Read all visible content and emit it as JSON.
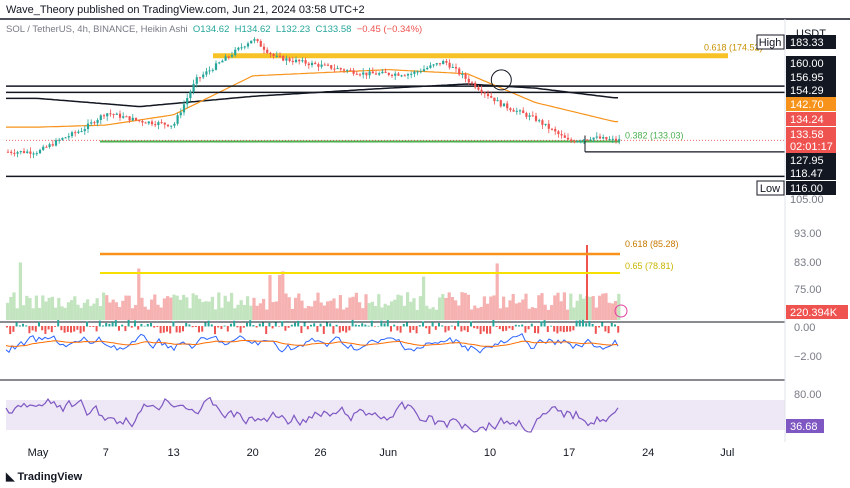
{
  "header": {
    "publisher": "Wave_Theory published on TradingView.com, Jun 21, 2024 03:58 UTC+2",
    "symbol": "SOL / TetherUS, 4h, BINANCE, Heikin Ashi",
    "o": "O134.62",
    "h": "H134.62",
    "l": "L132.23",
    "c": "C133.58",
    "chg": "−0.45 (−0.34%)",
    "currency": "USDT"
  },
  "logo_text": "TradingView",
  "colors": {
    "up": "#26a69a",
    "down": "#ef5350",
    "ema_orange": "#f7931a",
    "ema_black": "#131722",
    "fib_gold": "#f5b700",
    "fib_yellow": "#f5e000",
    "fib_green": "#4caf50",
    "macd": "#2962ff",
    "signal": "#ff6d00",
    "rsi": "#7e57c2",
    "rsi_band": "#ede7f6"
  },
  "chart_data": {
    "type": "candlestick",
    "title": "SOL / TetherUS, 4h, BINANCE, Heikin Ashi",
    "price_axis": {
      "range": [
        104,
        185
      ],
      "ticks": [
        "105.00"
      ]
    },
    "x_ticks": [
      "May",
      "7",
      "13",
      "20",
      "26",
      "Jun",
      "10",
      "17",
      "24",
      "Jul"
    ],
    "price_path_approx": [
      {
        "date": "May 1",
        "price": 128
      },
      {
        "date": "May 3",
        "price": 134
      },
      {
        "date": "May 5",
        "price": 139
      },
      {
        "date": "May 7",
        "price": 147
      },
      {
        "date": "May 10",
        "price": 143
      },
      {
        "date": "May 13",
        "price": 141
      },
      {
        "date": "May 15",
        "price": 163
      },
      {
        "date": "May 20",
        "price": 183
      },
      {
        "date": "May 22",
        "price": 174
      },
      {
        "date": "May 26",
        "price": 170
      },
      {
        "date": "May 30",
        "price": 166
      },
      {
        "date": "Jun 3",
        "price": 166
      },
      {
        "date": "Jun 6",
        "price": 172
      },
      {
        "date": "Jun 8",
        "price": 163
      },
      {
        "date": "Jun 11",
        "price": 151
      },
      {
        "date": "Jun 14",
        "price": 144
      },
      {
        "date": "Jun 17",
        "price": 133
      },
      {
        "date": "Jun 19",
        "price": 135
      },
      {
        "date": "Jun 21",
        "price": 133.58
      }
    ],
    "ema_orange_approx": [
      {
        "date": "May 1",
        "price": 140
      },
      {
        "date": "May 7",
        "price": 141
      },
      {
        "date": "May 13",
        "price": 146
      },
      {
        "date": "May 20",
        "price": 165
      },
      {
        "date": "Jun 1",
        "price": 168
      },
      {
        "date": "Jun 8",
        "price": 166
      },
      {
        "date": "Jun 14",
        "price": 152
      },
      {
        "date": "Jun 21",
        "price": 142.7
      }
    ],
    "ema_black_approx": [
      {
        "date": "May 1",
        "price": 154
      },
      {
        "date": "May 10",
        "price": 150
      },
      {
        "date": "May 20",
        "price": 155
      },
      {
        "date": "Jun 1",
        "price": 159
      },
      {
        "date": "Jun 8",
        "price": 161
      },
      {
        "date": "Jun 14",
        "price": 159
      },
      {
        "date": "Jun 21",
        "price": 154.29
      }
    ],
    "horizontal_levels": [
      {
        "price": 174.52,
        "label": "0.618 (174.52)"
      },
      {
        "price": 133.03,
        "label": "0.382 (133.03)"
      },
      {
        "price": 160.0
      },
      {
        "price": 156.95
      },
      {
        "price": 127.95
      },
      {
        "price": 116.0
      }
    ],
    "price_axis_labels": [
      {
        "text": "High",
        "value": "183.33"
      },
      {
        "text": "160.00"
      },
      {
        "text": "156.95"
      },
      {
        "text": "154.29"
      },
      {
        "text": "142.70"
      },
      {
        "text": "134.24"
      },
      {
        "text": "133.58"
      },
      {
        "text": "02:01:17"
      },
      {
        "text": "127.95"
      },
      {
        "text": "118.47"
      },
      {
        "text": "Low",
        "value": "116.00"
      },
      {
        "text": "105.00"
      }
    ],
    "volume_panel": {
      "axis_ticks": [
        "93.00",
        "83.00",
        "75.00"
      ],
      "levels": [
        {
          "label": "0.618 (85.28)"
        },
        {
          "label": "0.65 (78.81)"
        }
      ],
      "last_value": "220.394K"
    },
    "macd_panel": {
      "axis_ticks": [
        "0.00",
        "−2.00"
      ]
    },
    "rsi_panel": {
      "axis_ticks": [
        "80.00"
      ],
      "last_value": "36.68"
    }
  }
}
